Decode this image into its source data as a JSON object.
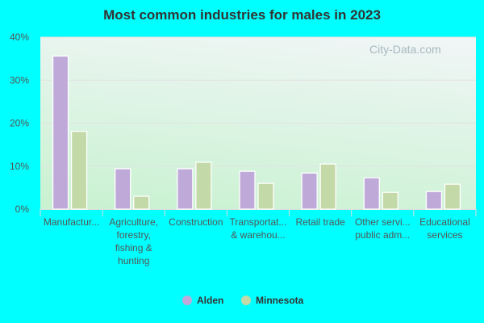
{
  "chart_data": {
    "type": "bar",
    "title": "Most common industries for males in 2023",
    "categories": [
      [
        "Manufactur..."
      ],
      [
        "Agriculture,",
        "forestry,",
        "fishing &",
        "hunting"
      ],
      [
        "Construction"
      ],
      [
        "Transportat...",
        "& warehou..."
      ],
      [
        "Retail trade"
      ],
      [
        "Other servi...",
        "public adm..."
      ],
      [
        "Educational",
        "services"
      ]
    ],
    "series": [
      {
        "name": "Alden",
        "color": "#bea9d9",
        "values": [
          35.6,
          9.4,
          9.4,
          8.8,
          8.4,
          7.3,
          4.1
        ]
      },
      {
        "name": "Minnesota",
        "color": "#c4d9a8",
        "values": [
          18.1,
          3.0,
          10.9,
          6.0,
          10.5,
          3.9,
          5.8
        ]
      }
    ],
    "ylim": [
      0,
      40
    ],
    "yticks": [
      "0%",
      "10%",
      "20%",
      "30%",
      "40%"
    ],
    "grid": true,
    "legend": "bottom",
    "watermark": "City-Data.com"
  }
}
